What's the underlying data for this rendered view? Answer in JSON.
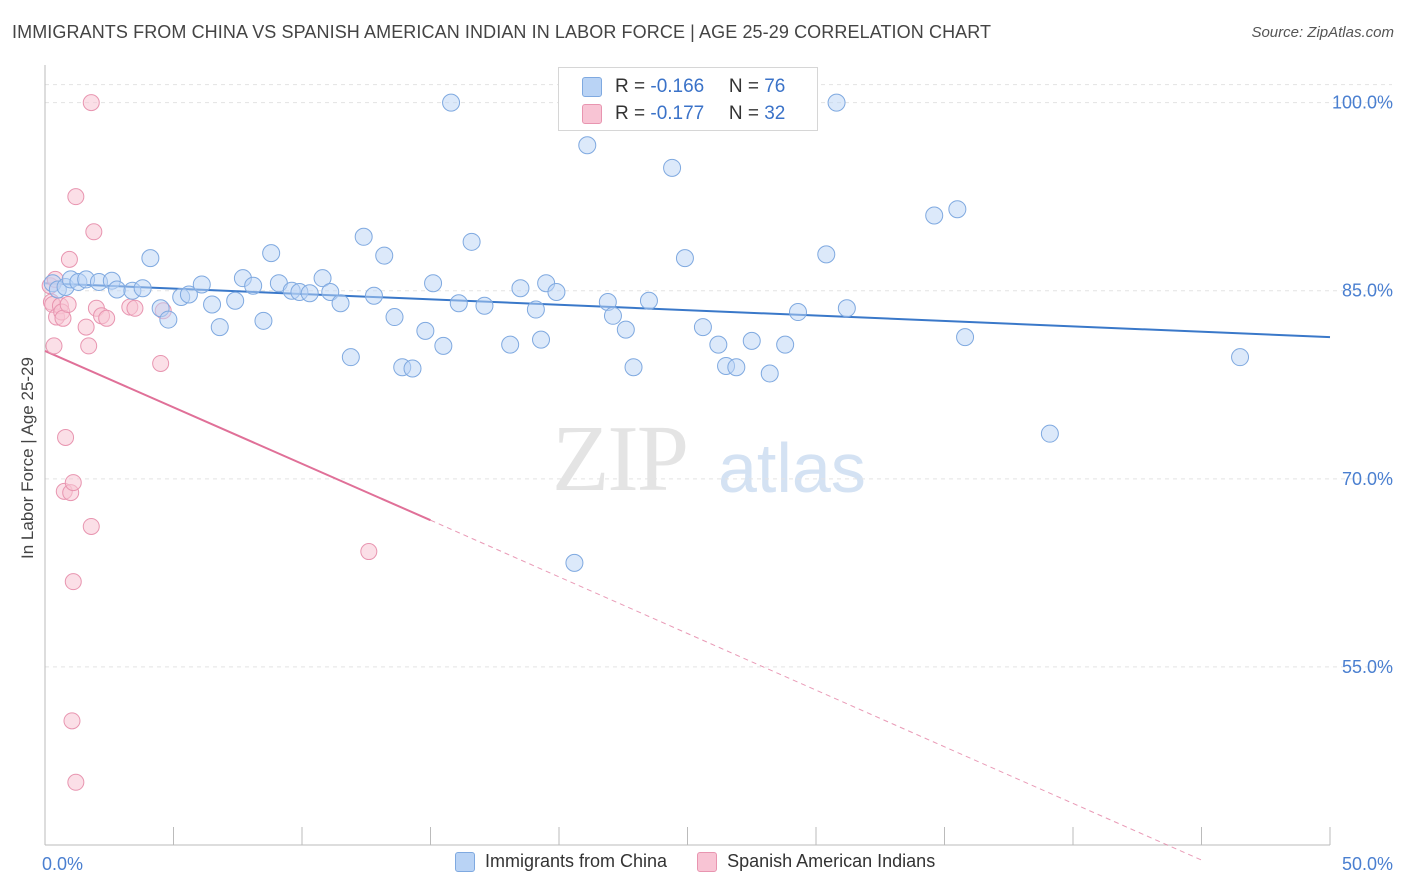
{
  "header": {
    "title": "IMMIGRANTS FROM CHINA VS SPANISH AMERICAN INDIAN IN LABOR FORCE | AGE 25-29 CORRELATION CHART",
    "source": "Source: ZipAtlas.com"
  },
  "watermark": {
    "zip": "ZIP",
    "atlas": "atlas"
  },
  "legend": {
    "china": {
      "r_label": "R = ",
      "r_value": "-0.166",
      "n_label": "N = ",
      "n_value": "76"
    },
    "spanish": {
      "r_label": "R = ",
      "r_value": "-0.177",
      "n_label": "N = ",
      "n_value": "32"
    }
  },
  "colors": {
    "china_fill": "#b9d3f5",
    "china_stroke": "#7fa9e0",
    "china_line": "#3a78c9",
    "spanish_fill": "#f8c4d4",
    "spanish_stroke": "#e895b0",
    "spanish_line": "#e07098",
    "grid": "#e3e3e3",
    "tick": "#4a7fd0"
  },
  "chart_data": {
    "type": "scatter",
    "title": "IMMIGRANTS FROM CHINA VS SPANISH AMERICAN INDIAN IN LABOR FORCE | AGE 25-29 CORRELATION CHART",
    "xlabel": "",
    "ylabel": "In Labor Force | Age 25-29",
    "xlim": [
      0,
      50
    ],
    "ylim": [
      40.8,
      103
    ],
    "x_tick_labels": [
      "0.0%",
      "50.0%"
    ],
    "y_ticks": [
      100,
      85,
      70,
      55
    ],
    "y_tick_labels": [
      "100.0%",
      "85.0%",
      "70.0%",
      "55.0%"
    ],
    "grid": true,
    "legend_position": "top-center",
    "series": [
      {
        "name": "Immigrants from China",
        "points": [
          [
            0.3,
            85.6
          ],
          [
            0.5,
            85.1
          ],
          [
            0.8,
            85.3
          ],
          [
            1.0,
            85.9
          ],
          [
            1.3,
            85.7
          ],
          [
            1.6,
            85.9
          ],
          [
            2.1,
            85.7
          ],
          [
            2.6,
            85.8
          ],
          [
            2.8,
            85.1
          ],
          [
            3.4,
            85.0
          ],
          [
            3.8,
            85.2
          ],
          [
            4.1,
            87.6
          ],
          [
            4.5,
            83.6
          ],
          [
            4.8,
            82.7
          ],
          [
            5.3,
            84.5
          ],
          [
            5.6,
            84.7
          ],
          [
            6.1,
            85.5
          ],
          [
            6.5,
            83.9
          ],
          [
            6.8,
            82.1
          ],
          [
            7.4,
            84.2
          ],
          [
            7.7,
            86.0
          ],
          [
            8.1,
            85.4
          ],
          [
            8.5,
            82.6
          ],
          [
            8.8,
            88.0
          ],
          [
            9.1,
            85.6
          ],
          [
            9.6,
            85.0
          ],
          [
            9.9,
            84.9
          ],
          [
            10.3,
            84.8
          ],
          [
            10.8,
            86.0
          ],
          [
            11.1,
            84.9
          ],
          [
            11.5,
            84.0
          ],
          [
            11.9,
            79.7
          ],
          [
            12.4,
            89.3
          ],
          [
            12.8,
            84.6
          ],
          [
            13.2,
            87.8
          ],
          [
            13.6,
            82.9
          ],
          [
            13.9,
            78.9
          ],
          [
            14.3,
            78.8
          ],
          [
            14.8,
            81.8
          ],
          [
            15.1,
            85.6
          ],
          [
            15.5,
            80.6
          ],
          [
            15.8,
            100.0
          ],
          [
            16.1,
            84.0
          ],
          [
            16.6,
            88.9
          ],
          [
            17.1,
            83.8
          ],
          [
            18.1,
            80.7
          ],
          [
            18.5,
            85.2
          ],
          [
            19.1,
            83.5
          ],
          [
            19.3,
            81.1
          ],
          [
            19.5,
            85.6
          ],
          [
            19.9,
            84.9
          ],
          [
            20.6,
            63.3
          ],
          [
            21.1,
            96.6
          ],
          [
            21.9,
            84.1
          ],
          [
            22.1,
            83.0
          ],
          [
            22.6,
            81.9
          ],
          [
            22.9,
            78.9
          ],
          [
            23.5,
            84.2
          ],
          [
            24.4,
            94.8
          ],
          [
            24.9,
            87.6
          ],
          [
            25.6,
            82.1
          ],
          [
            26.2,
            80.7
          ],
          [
            26.5,
            79.0
          ],
          [
            26.9,
            78.9
          ],
          [
            27.5,
            81.0
          ],
          [
            28.2,
            78.4
          ],
          [
            28.8,
            80.7
          ],
          [
            29.3,
            83.3
          ],
          [
            30.4,
            87.9
          ],
          [
            30.8,
            100.0
          ],
          [
            31.2,
            83.6
          ],
          [
            34.6,
            91.0
          ],
          [
            35.5,
            91.5
          ],
          [
            35.8,
            81.3
          ],
          [
            39.1,
            73.6
          ],
          [
            46.5,
            79.7
          ]
        ],
        "trend": {
          "x": [
            0,
            50
          ],
          "y": [
            85.6,
            81.3
          ]
        }
      },
      {
        "name": "Spanish American Indians",
        "points": [
          [
            0.2,
            85.4
          ],
          [
            0.25,
            84.1
          ],
          [
            0.3,
            83.9
          ],
          [
            0.35,
            80.6
          ],
          [
            0.4,
            85.9
          ],
          [
            0.45,
            82.9
          ],
          [
            0.6,
            83.8
          ],
          [
            0.65,
            83.3
          ],
          [
            0.7,
            82.8
          ],
          [
            0.75,
            69.0
          ],
          [
            0.8,
            73.3
          ],
          [
            0.9,
            83.9
          ],
          [
            0.95,
            87.5
          ],
          [
            1.0,
            68.9
          ],
          [
            1.1,
            69.7
          ],
          [
            1.1,
            61.8
          ],
          [
            1.05,
            50.7
          ],
          [
            1.2,
            45.8
          ],
          [
            1.2,
            92.5
          ],
          [
            1.6,
            82.1
          ],
          [
            1.7,
            80.6
          ],
          [
            1.8,
            66.2
          ],
          [
            1.8,
            100.0
          ],
          [
            1.9,
            89.7
          ],
          [
            2.0,
            83.6
          ],
          [
            2.2,
            83.0
          ],
          [
            2.4,
            82.8
          ],
          [
            3.3,
            83.7
          ],
          [
            3.5,
            83.6
          ],
          [
            4.5,
            79.2
          ],
          [
            4.6,
            83.4
          ],
          [
            12.6,
            64.2
          ]
        ],
        "trend": {
          "x": [
            0,
            15.0
          ],
          "y": [
            80.2,
            66.7
          ]
        },
        "trend_extension": {
          "x": [
            15.0,
            45.0
          ],
          "y": [
            66.7,
            39.6
          ]
        }
      }
    ]
  },
  "bottom_legend": {
    "items": [
      {
        "label": "Immigrants from China"
      },
      {
        "label": "Spanish American Indians"
      }
    ]
  }
}
